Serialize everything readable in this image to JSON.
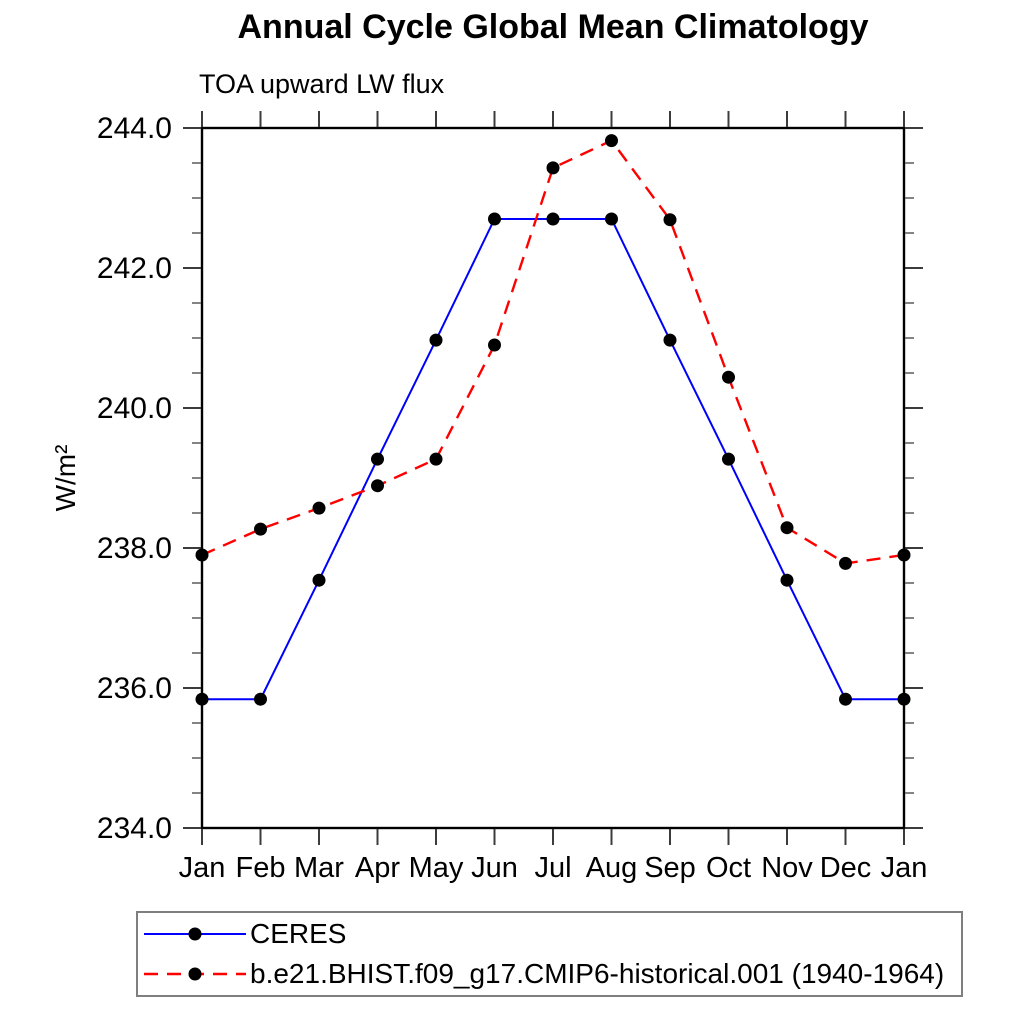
{
  "chart_data": {
    "type": "line",
    "title": "Annual Cycle Global Mean Climatology",
    "subtitle": "TOA upward LW flux",
    "ylabel": "W/m²",
    "xlabel": "",
    "categories": [
      "Jan",
      "Feb",
      "Mar",
      "Apr",
      "May",
      "Jun",
      "Jul",
      "Aug",
      "Sep",
      "Oct",
      "Nov",
      "Dec",
      "Jan"
    ],
    "ylim": [
      234.0,
      244.0
    ],
    "ytick_major_step": 2.0,
    "ytick_minor_step": 0.5,
    "ytick_labels": [
      "234.0",
      "236.0",
      "238.0",
      "240.0",
      "242.0",
      "244.0"
    ],
    "grid": false,
    "legend_position": "bottom-left",
    "series": [
      {
        "name": "CERES",
        "color": "#0000ff",
        "line_style": "solid",
        "marker": "filled-circle",
        "marker_color": "#000000",
        "values": [
          235.84,
          235.84,
          237.54,
          239.27,
          240.97,
          242.7,
          242.7,
          242.7,
          240.97,
          239.27,
          237.54,
          235.84,
          235.84
        ]
      },
      {
        "name": "b.e21.BHIST.f09_g17.CMIP6-historical.001 (1940-1964)",
        "color": "#ff0000",
        "line_style": "dashed",
        "marker": "filled-circle",
        "marker_color": "#000000",
        "values": [
          237.9,
          238.27,
          238.57,
          238.89,
          239.27,
          240.9,
          243.43,
          243.82,
          242.69,
          240.44,
          238.29,
          237.78,
          237.9
        ]
      }
    ]
  },
  "colors": {
    "background": "#ffffff",
    "frame": "#000000",
    "tick": "#3c3c3c",
    "minor_tick": "#666666",
    "text": "#000000",
    "legend_border": "#7f7f7f"
  }
}
